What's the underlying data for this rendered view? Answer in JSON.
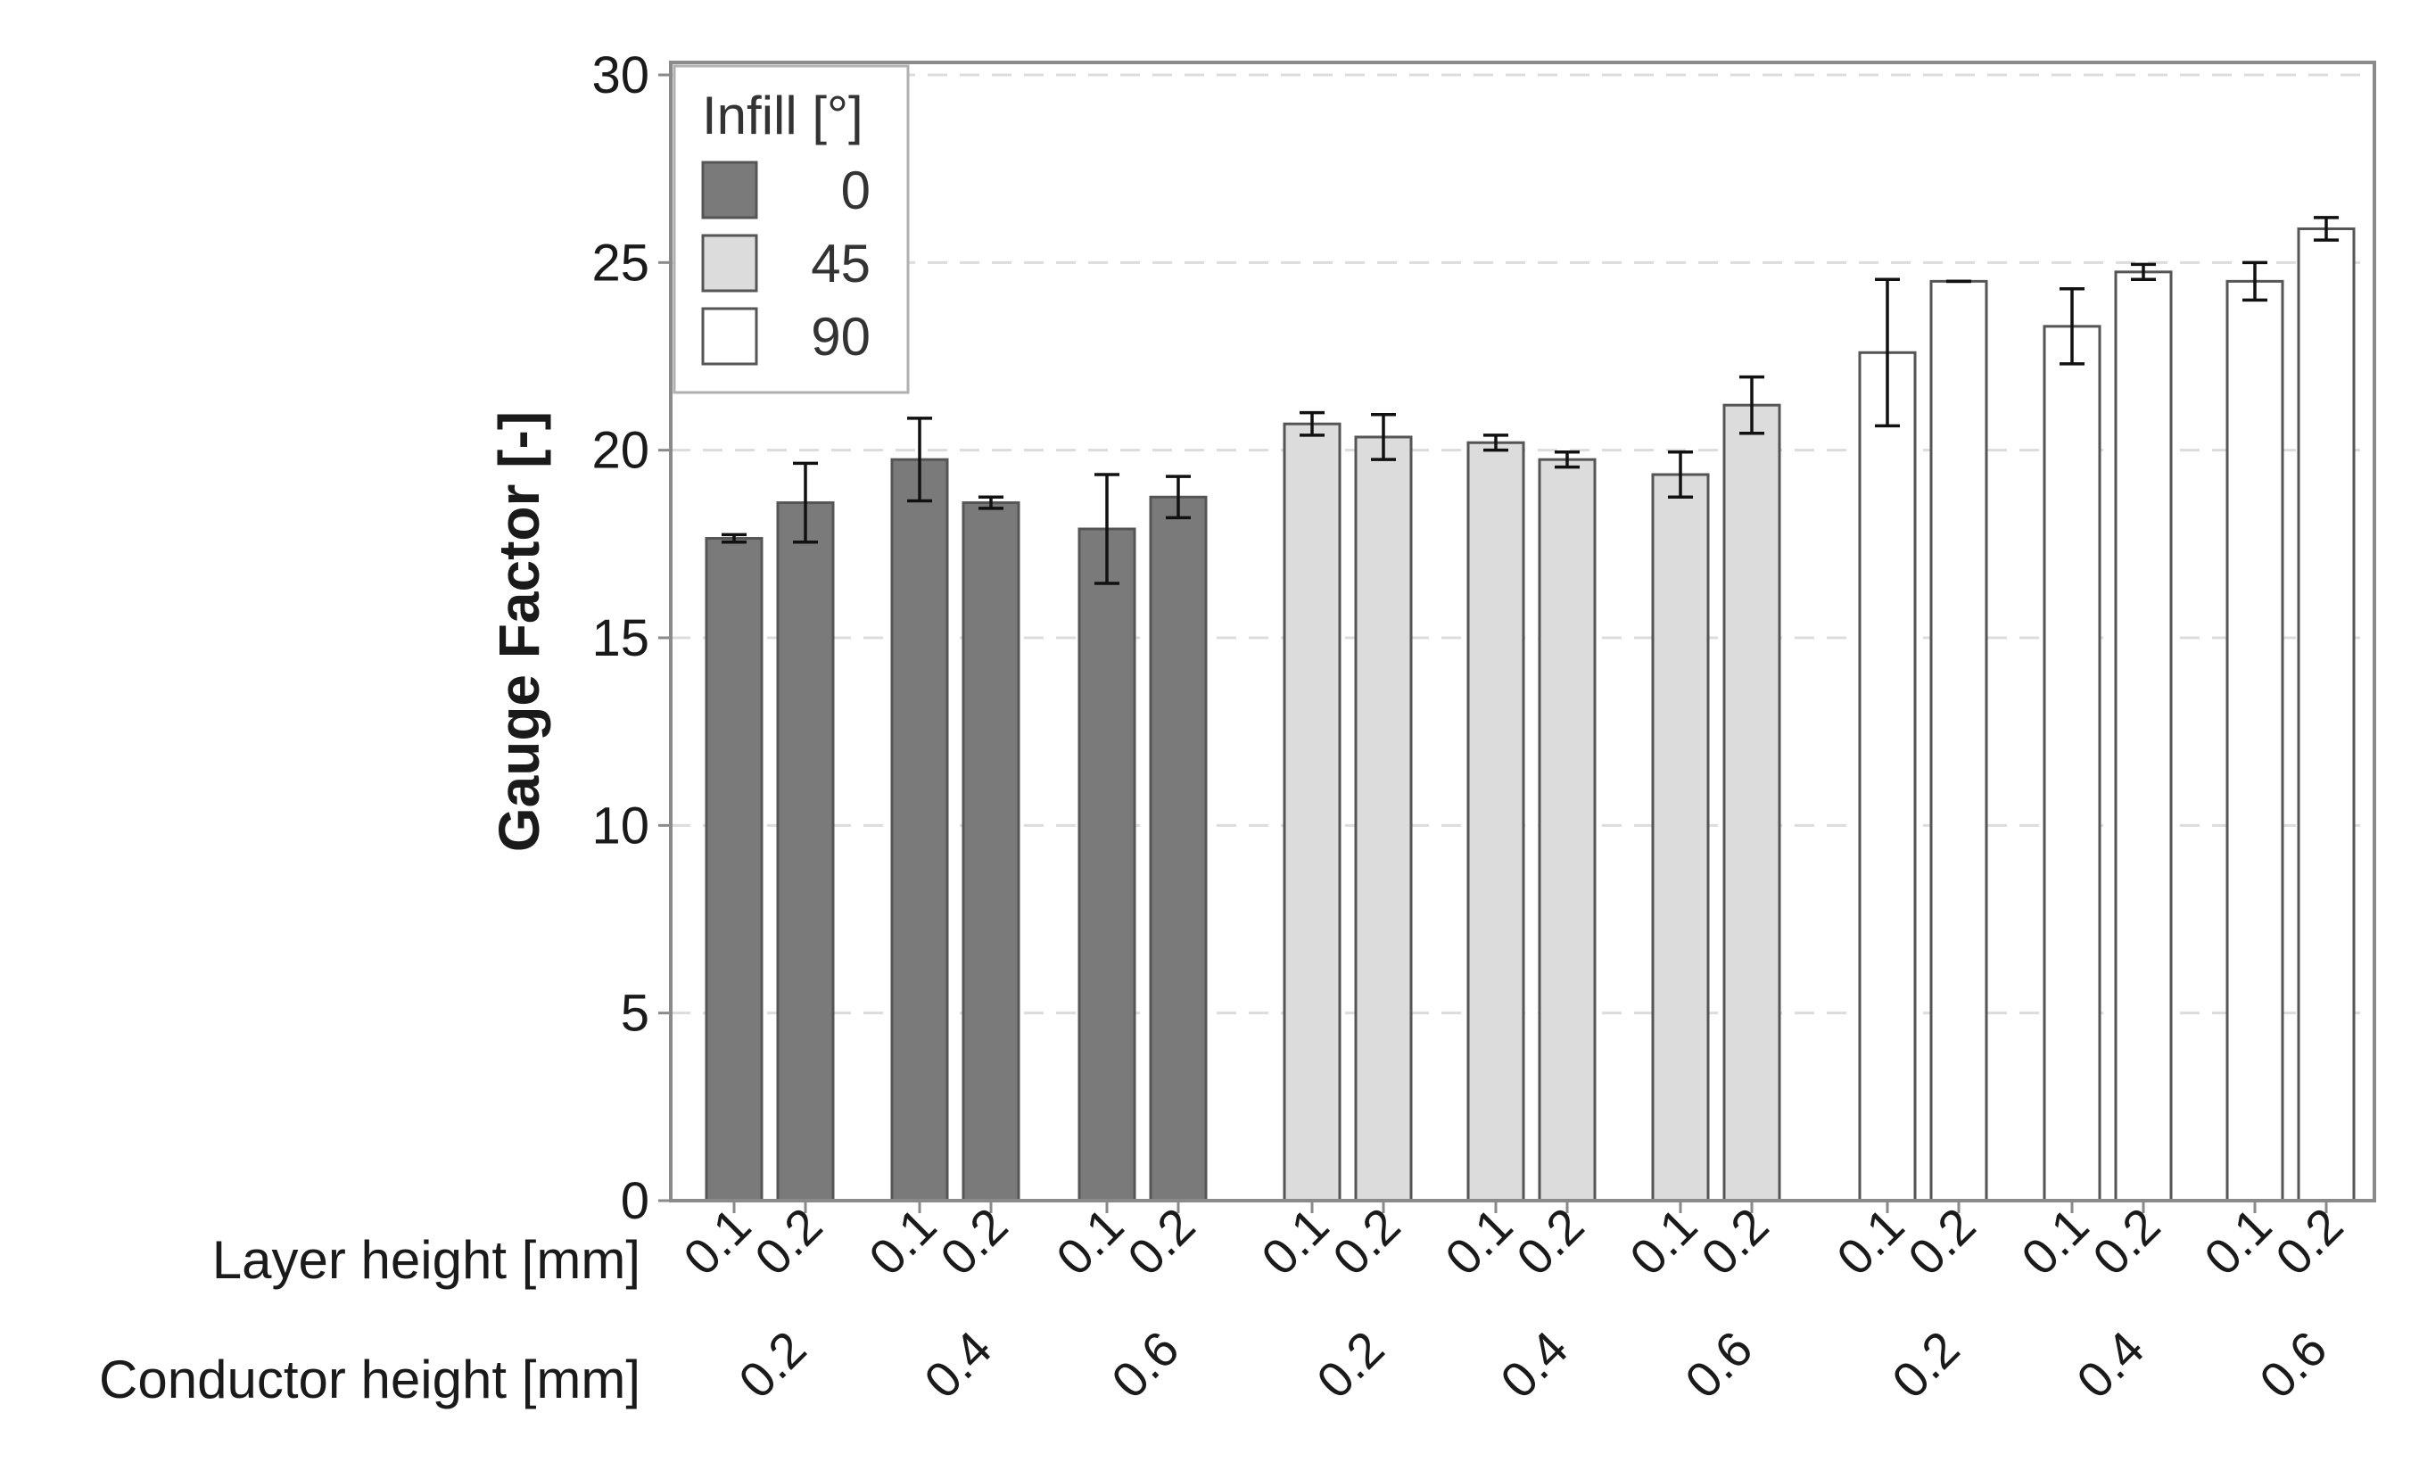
{
  "chart_data": {
    "type": "bar",
    "title": "",
    "ylabel": "Gauge Factor [-]",
    "ylim": [
      0,
      30
    ],
    "yticks": [
      0,
      5,
      10,
      15,
      20,
      25,
      30
    ],
    "grid": "horizontal dashed",
    "legend": {
      "title": "Infill [°]",
      "position": "top-left",
      "entries": [
        {
          "label": "0",
          "color": "#7a7a7a"
        },
        {
          "label": "45",
          "color": "#dcdcdc"
        },
        {
          "label": "90",
          "color": "#ffffff"
        }
      ]
    },
    "row_labels": {
      "layer": "Layer height [mm]",
      "conductor": "Conductor height [mm]"
    },
    "groups": [
      {
        "infill": "0",
        "conductor": "0.2",
        "bars": [
          {
            "layer": "0.1",
            "value": 17.65,
            "err": 0.1
          },
          {
            "layer": "0.2",
            "value": 18.6,
            "err": 1.05
          }
        ]
      },
      {
        "infill": "0",
        "conductor": "0.4",
        "bars": [
          {
            "layer": "0.1",
            "value": 19.75,
            "err": 1.1
          },
          {
            "layer": "0.2",
            "value": 18.6,
            "err": 0.15
          }
        ]
      },
      {
        "infill": "0",
        "conductor": "0.6",
        "bars": [
          {
            "layer": "0.1",
            "value": 17.9,
            "err": 1.45
          },
          {
            "layer": "0.2",
            "value": 18.75,
            "err": 0.55
          }
        ]
      },
      {
        "infill": "45",
        "conductor": "0.2",
        "bars": [
          {
            "layer": "0.1",
            "value": 20.7,
            "err": 0.3
          },
          {
            "layer": "0.2",
            "value": 20.35,
            "err": 0.6
          }
        ]
      },
      {
        "infill": "45",
        "conductor": "0.4",
        "bars": [
          {
            "layer": "0.1",
            "value": 20.2,
            "err": 0.2
          },
          {
            "layer": "0.2",
            "value": 19.75,
            "err": 0.2
          }
        ]
      },
      {
        "infill": "45",
        "conductor": "0.6",
        "bars": [
          {
            "layer": "0.1",
            "value": 19.35,
            "err": 0.6
          },
          {
            "layer": "0.2",
            "value": 21.2,
            "err": 0.75
          }
        ]
      },
      {
        "infill": "90",
        "conductor": "0.2",
        "bars": [
          {
            "layer": "0.1",
            "value": 22.6,
            "err": 1.95
          },
          {
            "layer": "0.2",
            "value": 24.5,
            "err": 0
          }
        ]
      },
      {
        "infill": "90",
        "conductor": "0.4",
        "bars": [
          {
            "layer": "0.1",
            "value": 23.3,
            "err": 1.0
          },
          {
            "layer": "0.2",
            "value": 24.75,
            "err": 0.2
          }
        ]
      },
      {
        "infill": "90",
        "conductor": "0.6",
        "bars": [
          {
            "layer": "0.1",
            "value": 24.5,
            "err": 0.5
          },
          {
            "layer": "0.2",
            "value": 25.9,
            "err": 0.3
          }
        ]
      }
    ]
  }
}
